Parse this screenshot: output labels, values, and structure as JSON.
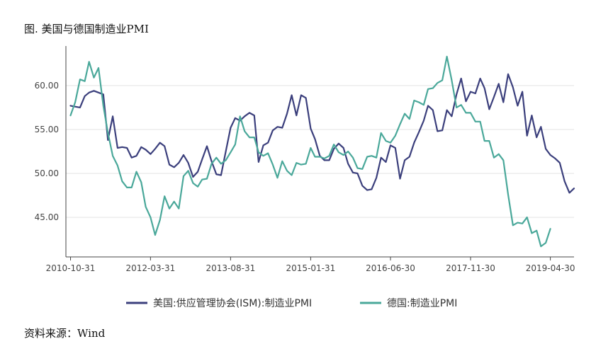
{
  "figure": {
    "title": "图. 美国与德国制造业PMI",
    "source": "资料来源：Wind"
  },
  "chart_data": {
    "type": "line",
    "title": "",
    "xlabel": "",
    "ylabel": "",
    "ylim": [
      40.5,
      64.5
    ],
    "yticks": [
      45,
      50,
      55,
      60
    ],
    "ytick_labels": [
      "45.00",
      "50.00",
      "55.00",
      "60.00"
    ],
    "xlim": [
      "2010-10-01",
      "2019-09-30"
    ],
    "xtick_labels": [
      "2010-10-31",
      "2012-03-31",
      "2013-08-31",
      "2015-01-31",
      "2016-06-30",
      "2017-11-30",
      "2019-04-30"
    ],
    "grid": "horizontal",
    "legend_position": "bottom",
    "series": [
      {
        "name": "美国:供应管理协会(ISM):制造业PMI",
        "color": "#3b3f7c",
        "start": "2010-10",
        "values": [
          57.7,
          57.6,
          57.5,
          58.8,
          59.2,
          59.4,
          59.2,
          59.0,
          53.8,
          56.5,
          52.9,
          53.0,
          52.9,
          51.8,
          52.0,
          53.0,
          52.7,
          52.2,
          52.8,
          53.5,
          53.1,
          51.0,
          50.7,
          51.2,
          52.1,
          51.2,
          49.6,
          50.2,
          51.6,
          53.1,
          51.4,
          49.9,
          49.8,
          52.5,
          55.2,
          56.3,
          56.0,
          56.5,
          56.9,
          56.6,
          51.3,
          53.2,
          53.5,
          54.9,
          55.3,
          55.2,
          56.8,
          58.9,
          56.6,
          58.9,
          58.6,
          55.1,
          53.9,
          52.0,
          51.5,
          51.5,
          52.8,
          53.4,
          52.9,
          51.1,
          50.1,
          50.0,
          48.6,
          48.1,
          48.2,
          49.5,
          51.8,
          51.3,
          53.2,
          52.9,
          49.4,
          51.5,
          51.9,
          53.5,
          54.7,
          56.0,
          57.7,
          57.2,
          54.8,
          54.9,
          57.2,
          56.5,
          59.0,
          60.8,
          58.2,
          59.3,
          59.1,
          60.8,
          59.7,
          57.3,
          58.7,
          60.2,
          58.1,
          61.3,
          59.8,
          57.7,
          59.3,
          54.3,
          56.6,
          54.1,
          55.3,
          52.8,
          52.1,
          51.7,
          51.2,
          49.1,
          47.8,
          48.3
        ],
        "values_note": "monthly"
      },
      {
        "name": "德国:制造业PMI",
        "color": "#4aa89a",
        "start": "2010-10",
        "values": [
          56.6,
          58.1,
          60.7,
          60.5,
          62.7,
          60.9,
          62.0,
          57.7,
          54.6,
          52.0,
          50.9,
          49.1,
          48.4,
          48.4,
          50.2,
          49.0,
          46.2,
          45.0,
          43.0,
          44.7,
          47.4,
          46.0,
          46.8,
          46.0,
          49.7,
          50.3,
          48.9,
          48.5,
          49.3,
          49.4,
          51.1,
          51.8,
          51.1,
          51.5,
          52.4,
          53.3,
          56.5,
          54.8,
          54.1,
          54.1,
          52.4,
          52.0,
          52.3,
          51.0,
          49.5,
          51.4,
          50.3,
          49.8,
          51.2,
          51.0,
          51.1,
          52.9,
          51.9,
          51.9,
          51.7,
          52.0,
          53.3,
          52.4,
          52.1,
          52.5,
          51.8,
          50.6,
          50.5,
          51.9,
          52.0,
          51.8,
          54.6,
          53.7,
          53.5,
          54.3,
          55.6,
          56.8,
          56.2,
          58.3,
          58.1,
          57.8,
          59.6,
          59.7,
          60.3,
          60.6,
          63.3,
          60.6,
          57.5,
          57.8,
          56.9,
          56.9,
          55.9,
          55.9,
          53.7,
          53.7,
          51.8,
          52.2,
          51.5,
          47.6,
          44.1,
          44.4,
          44.3,
          45.0,
          43.2,
          43.5,
          41.7,
          42.1,
          43.7
        ],
        "values_note": "monthly"
      }
    ]
  }
}
